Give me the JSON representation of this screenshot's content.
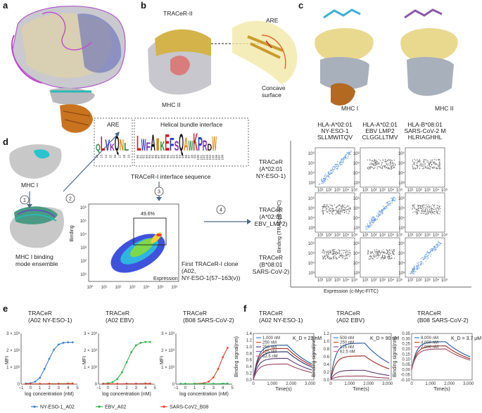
{
  "panel_letters": [
    "a",
    "b",
    "c",
    "d",
    "e",
    "f"
  ],
  "panel_b": {
    "tracer": "TRACeR-II",
    "are": "ARE",
    "concave": "Concave\nsurface",
    "mhc": "MHC II"
  },
  "panel_c": {
    "mhc1": "MHC I",
    "mhc2": "MHC II"
  },
  "panel_d": {
    "mhc1": "MHC I",
    "binding_ensemble": "MHC I binding\nmode ensemble",
    "steps": [
      "1",
      "2",
      "3",
      "4"
    ],
    "are_label": "ARE",
    "helical_label": "Helical bundle interface",
    "logo_positions": [
      "12",
      "13",
      "14",
      "15",
      "16",
      "17",
      "18",
      "19",
      "80",
      "81",
      "82",
      "83",
      "84",
      "85",
      "86",
      "87",
      "88",
      "89",
      "90",
      "91",
      "92",
      "93",
      "94",
      "95",
      "96",
      "97",
      "98",
      "99",
      "100",
      "101",
      "102",
      "103",
      "104",
      "105",
      "106",
      "107",
      "108"
    ],
    "logo_letters": "QLVKQNLLWFAIKEFSQAWKPRDW",
    "seq_caption": "TRACeR-I interface sequence",
    "flow_pct": "49.6%",
    "flow_ylabel": "Binding",
    "flow_xlabel": "Expression",
    "flow_ticks": [
      "10⁰",
      "10¹",
      "10²",
      "10³",
      "10⁴",
      "10⁵",
      "10⁶"
    ],
    "flow_yticks": [
      "10¹",
      "10²",
      "10³",
      "10⁴",
      "10⁵",
      "10⁶"
    ],
    "clone_caption": "First TRACeR-I clone\n(A02,\nNY-ESO-1(57–163(v))",
    "col_heads": [
      "HLA-A*02:01\nNY-ESO-1\nSLLMWITQV",
      "HLA-A*02:01\nEBV LMP2\nCLGGLLTMV",
      "HLA-B*08:01\nSARS-CoV-2 M\nHLRIAGHHL"
    ],
    "row_heads": [
      "TRACeR\n(A*02:01\nNY-ESO-1)",
      "TRACeR\n(A*02:01\nEBV_LMP2)",
      "TRACeR\n(B*08:01\nSARS-CoV-2)"
    ],
    "grid_ylabel": "Binding (TRACeR-APC)",
    "grid_xlabel": "Expression (c-Myc-FITC)"
  },
  "panel_e": {
    "titles": [
      "TRACeR\n(A02 NY-ESO-1)",
      "TRACeR\n(A02 EBV)",
      "TRACeR\n(B08 SARS-CoV-2)"
    ],
    "ylabel": "MFI",
    "xlabel": "log concentration (nM)",
    "yticks": [
      "0",
      "1 × 10³",
      "2 × 10³",
      "3 × 10³"
    ],
    "xticks": [
      "−1",
      "0",
      "1",
      "2",
      "3",
      "4",
      "5"
    ],
    "legend": [
      "NY-ESO-1_A02",
      "EBV_A02",
      "SARS-CoV2_B08"
    ],
    "colors": [
      "#3a7fd5",
      "#33b24a",
      "#e0432f"
    ]
  },
  "panel_f": {
    "titles": [
      "TRACeR\n(A02 NY-ESO-1)",
      "TRACeR\n(A02 EBV)",
      "TRACeR\n(B08 SARS-CoV-2)"
    ],
    "kd": [
      "K_D = 22 nM",
      "K_D = 90 nM",
      "K_D = 3.7 µM"
    ],
    "ylabel": "Binding signal(nm)",
    "xlabel": "Time(s)",
    "xticks": [
      "0",
      "1,000",
      "2,000",
      "3,000"
    ],
    "legends": [
      [
        "1,000 nM",
        "250 nM",
        "250 nM",
        "125 nM",
        "62.5 nM"
      ],
      [
        "500 nM",
        "250 nM",
        "125 nM",
        "62.5 nM"
      ],
      [
        "8,000 nM",
        "4,000 nM",
        "2,000 nM"
      ]
    ]
  },
  "chart_data": [
    {
      "type": "line",
      "title": "TRACeR (A02 NY-ESO-1)",
      "xlabel": "log concentration (nM)",
      "ylabel": "MFI",
      "xlim": [
        -1,
        5
      ],
      "ylim": [
        0,
        3000
      ],
      "series": [
        {
          "name": "NY-ESO-1_A02",
          "x": [
            -0.5,
            0,
            0.5,
            1,
            1.5,
            2,
            2.5,
            3,
            3.5,
            4,
            4.5
          ],
          "values": [
            40,
            60,
            150,
            380,
            900,
            1500,
            2050,
            2350,
            2450,
            2480,
            2480
          ]
        },
        {
          "name": "EBV_A02",
          "x": [
            -0.5,
            0,
            1,
            2,
            3,
            4,
            4.5
          ],
          "values": [
            20,
            20,
            20,
            30,
            30,
            40,
            40
          ]
        },
        {
          "name": "SARS-CoV2_B08",
          "x": [
            -0.5,
            0,
            1,
            2,
            3,
            4,
            4.5
          ],
          "values": [
            20,
            20,
            20,
            20,
            20,
            30,
            30
          ]
        }
      ]
    },
    {
      "type": "line",
      "title": "TRACeR (A02 EBV)",
      "xlabel": "log concentration (nM)",
      "ylabel": "MFI",
      "xlim": [
        -1,
        5
      ],
      "ylim": [
        0,
        3000
      ],
      "series": [
        {
          "name": "EBV_A02",
          "x": [
            -0.5,
            0,
            0.5,
            1,
            1.5,
            2,
            2.5,
            3,
            3.5,
            4,
            4.5
          ],
          "values": [
            30,
            50,
            120,
            300,
            700,
            1300,
            1900,
            2300,
            2450,
            2500,
            2500
          ]
        },
        {
          "name": "NY-ESO-1_A02",
          "x": [
            -0.5,
            0,
            1,
            2,
            3,
            4,
            4.5
          ],
          "values": [
            20,
            20,
            20,
            30,
            30,
            40,
            40
          ]
        },
        {
          "name": "SARS-CoV2_B08",
          "x": [
            -0.5,
            0,
            1,
            2,
            3,
            4,
            4.5
          ],
          "values": [
            20,
            20,
            20,
            20,
            20,
            30,
            30
          ]
        }
      ]
    },
    {
      "type": "line",
      "title": "TRACeR (B08 SARS-CoV-2)",
      "xlabel": "log concentration (nM)",
      "ylabel": "MFI",
      "xlim": [
        -1,
        5
      ],
      "ylim": [
        0,
        3000
      ],
      "series": [
        {
          "name": "SARS-CoV2_B08",
          "x": [
            -0.5,
            0,
            1,
            2,
            2.5,
            3,
            3.5,
            4,
            4.5
          ],
          "values": [
            20,
            20,
            30,
            60,
            150,
            400,
            900,
            1600,
            2150
          ]
        },
        {
          "name": "NY-ESO-1_A02",
          "x": [
            -0.5,
            0,
            1,
            2,
            3,
            4,
            4.5
          ],
          "values": [
            20,
            20,
            20,
            20,
            20,
            30,
            30
          ]
        },
        {
          "name": "EBV_A02",
          "x": [
            -0.5,
            0,
            1,
            2,
            3,
            4,
            4.5
          ],
          "values": [
            20,
            20,
            20,
            20,
            20,
            30,
            30
          ]
        }
      ]
    },
    {
      "type": "line",
      "title": "TRACeR (A02 NY-ESO-1) BLI",
      "xlabel": "Time(s)",
      "ylabel": "Binding signal(nm)",
      "xlim": [
        0,
        3200
      ],
      "ylim": [
        0,
        1.4
      ],
      "series": [
        {
          "name": "1,000 nM",
          "plateau": 1.05,
          "color": "#3a7fd5"
        },
        {
          "name": "250 nM",
          "plateau": 0.95,
          "color": "#e0432f"
        },
        {
          "name": "250 nM",
          "plateau": 0.85,
          "color": "#4a4a8a"
        },
        {
          "name": "125 nM",
          "plateau": 0.65,
          "color": "#8a5aa8"
        },
        {
          "name": "62.5 nM",
          "plateau": 0.48,
          "color": "#e06a8a"
        }
      ]
    },
    {
      "type": "line",
      "title": "TRACeR (A02 EBV) BLI",
      "xlabel": "Time(s)",
      "ylabel": "Binding signal(nm)",
      "xlim": [
        0,
        3200
      ],
      "ylim": [
        0,
        1.2
      ],
      "series": [
        {
          "name": "500 nM",
          "plateau": 0.95,
          "color": "#3a7fd5"
        },
        {
          "name": "250 nM",
          "plateau": 0.62,
          "color": "#e0432f"
        },
        {
          "name": "125 nM",
          "plateau": 0.25,
          "color": "#8a5aa8"
        },
        {
          "name": "62.5 nM",
          "plateau": 0.1,
          "color": "#e06a8a"
        }
      ]
    },
    {
      "type": "line",
      "title": "TRACeR (B08 SARS-CoV-2) BLI",
      "xlabel": "Time(s)",
      "ylabel": "Binding signal(nm)",
      "xlim": [
        0,
        3200
      ],
      "ylim": [
        -0.1,
        0.35
      ],
      "series": [
        {
          "name": "8,000 nM",
          "plateau": 0.27,
          "color": "#3a7fd5"
        },
        {
          "name": "4,000 nM",
          "plateau": 0.23,
          "color": "#e0432f"
        },
        {
          "name": "2,000 nM",
          "plateau": 0.2,
          "color": "#e06a8a"
        }
      ]
    }
  ]
}
